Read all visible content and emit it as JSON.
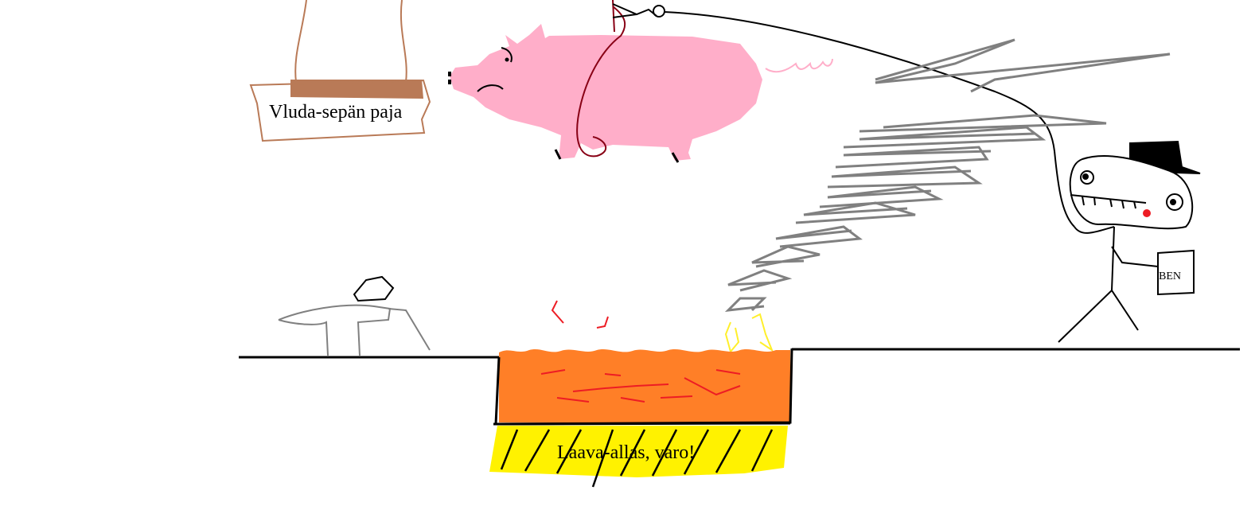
{
  "sign": {
    "text": "Vluda-sepän paja"
  },
  "pool": {
    "label": "Laava-allas, varo!"
  },
  "bag": {
    "label": "BEN"
  },
  "colors": {
    "pig": "#ffaec9",
    "lava": "#ff7f27",
    "lava_streaks": "#ed1c24",
    "warning_stripe": "#fff200",
    "wood": "#b97a57",
    "smoke": "#808080",
    "flame": "#ffef2b",
    "rope": "#880015",
    "ground": "#000000"
  }
}
